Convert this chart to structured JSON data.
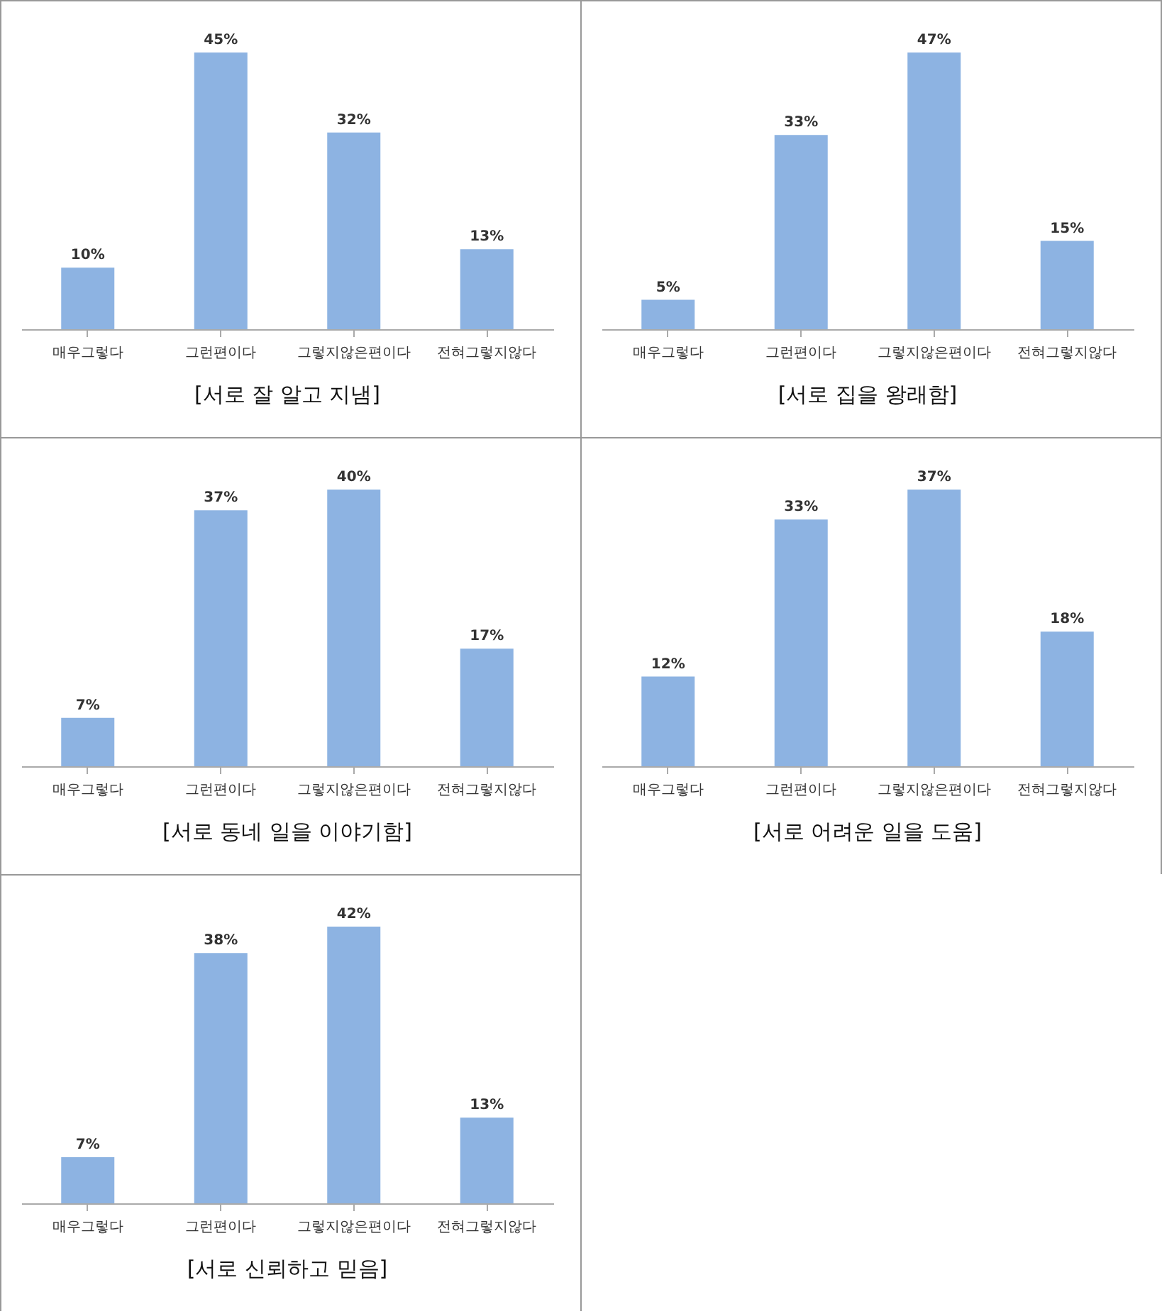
{
  "chart_data": [
    {
      "type": "bar",
      "title": "[서로 잘 알고 지냄]",
      "categories": [
        "매우그렇다",
        "그런편이다",
        "그렇지않은편이다",
        "전혀그렇지않다"
      ],
      "values": [
        10,
        45,
        32,
        13
      ],
      "value_labels": [
        "10%",
        "45%",
        "32%",
        "13%"
      ],
      "color": "#8db3e2",
      "tick_labels": "x"
    },
    {
      "type": "bar",
      "title": "[서로 집을 왕래함]",
      "categories": [
        "매우그렇다",
        "그런편이다",
        "그렇지않은편이다",
        "전혀그렇지않다"
      ],
      "values": [
        5,
        33,
        47,
        15
      ],
      "value_labels": [
        "5%",
        "33%",
        "47%",
        "15%"
      ],
      "color": "#8db3e2",
      "tick_labels": "x"
    },
    {
      "type": "bar",
      "title": "[서로 동네 일을 이야기함]",
      "categories": [
        "매우그렇다",
        "그런편이다",
        "그렇지않은편이다",
        "전혀그렇지않다"
      ],
      "values": [
        7,
        37,
        40,
        17
      ],
      "value_labels": [
        "7%",
        "37%",
        "40%",
        "17%"
      ],
      "color": "#8db3e2",
      "tick_labels": "x"
    },
    {
      "type": "bar",
      "title": "[서로 어려운 일을 도움]",
      "categories": [
        "매우그렇다",
        "그런편이다",
        "그렇지않은편이다",
        "전혀그렇지않다"
      ],
      "values": [
        12,
        33,
        37,
        18
      ],
      "value_labels": [
        "12%",
        "33%",
        "37%",
        "18%"
      ],
      "color": "#8db3e2",
      "tick_labels": "x"
    },
    {
      "type": "bar",
      "title": "[서로 신뢰하고 믿음]",
      "categories": [
        "매우그렇다",
        "그런편이다",
        "그렇지않은편이다",
        "전혀그렇지않다"
      ],
      "values": [
        7,
        38,
        42,
        13
      ],
      "value_labels": [
        "7%",
        "38%",
        "42%",
        "13%"
      ],
      "color": "#8db3e2",
      "tick_labels": "x"
    }
  ]
}
